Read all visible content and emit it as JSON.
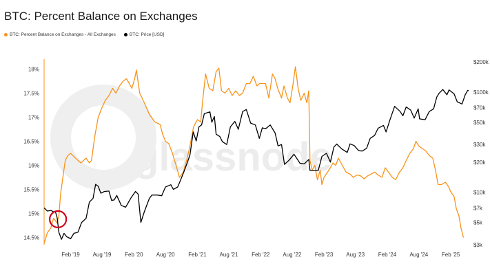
{
  "title": "BTC: Percent Balance on Exchanges",
  "watermark": "glassnode",
  "legend": [
    {
      "label": "BTC: Percent Balance on Exchanges - All Exchanges",
      "color": "#f7931a"
    },
    {
      "label": "BTC: Price [USD]",
      "color": "#000000"
    }
  ],
  "colors": {
    "balance": "#f7931a",
    "price": "#000000",
    "highlight": "#d0021b"
  },
  "chart_data": {
    "type": "line",
    "x_tick_labels": [
      "Feb '19",
      "Aug '19",
      "Feb '20",
      "Aug '20",
      "Feb '21",
      "Aug '21",
      "Feb '22",
      "Aug '22",
      "Feb '23",
      "Aug '23",
      "Feb '24",
      "Aug '24",
      "Feb '25"
    ],
    "x_range": [
      "2018-09-01",
      "2025-05-15"
    ],
    "y_left": {
      "label": "",
      "min": 14.35,
      "max": 18.15,
      "ticks": [
        14.5,
        15,
        15.5,
        16,
        16.5,
        17,
        17.5,
        18
      ],
      "tick_labels": [
        "14.5%",
        "15%",
        "15.5%",
        "16%",
        "16.5%",
        "17%",
        "17.5%",
        "18%"
      ]
    },
    "y_right": {
      "label": "",
      "scale": "log",
      "min": 3000,
      "max": 200000,
      "ticks": [
        3000,
        5000,
        7000,
        10000,
        20000,
        30000,
        50000,
        70000,
        100000,
        200000
      ],
      "tick_labels": [
        "$3k",
        "$5k",
        "$7k",
        "$10k",
        "$20k",
        "$30k",
        "$50k",
        "$70k",
        "$100k",
        "$200k"
      ]
    },
    "series": [
      {
        "name": "BTC: Percent Balance on Exchanges - All Exchanges",
        "axis": "left",
        "points": [
          [
            "2018-09-01",
            14.38
          ],
          [
            "2018-09-20",
            14.6
          ],
          [
            "2018-10-10",
            14.7
          ],
          [
            "2018-10-25",
            14.9
          ],
          [
            "2018-11-05",
            14.85
          ],
          [
            "2018-11-15",
            14.8
          ],
          [
            "2018-11-25",
            14.95
          ],
          [
            "2018-12-05",
            15.4
          ],
          [
            "2018-12-20",
            15.8
          ],
          [
            "2019-01-01",
            16.1
          ],
          [
            "2019-01-15",
            16.2
          ],
          [
            "2019-02-01",
            16.25
          ],
          [
            "2019-03-01",
            16.15
          ],
          [
            "2019-04-01",
            16.05
          ],
          [
            "2019-05-01",
            16.15
          ],
          [
            "2019-05-20",
            16.05
          ],
          [
            "2019-06-01",
            16.1
          ],
          [
            "2019-06-20",
            16.6
          ],
          [
            "2019-07-10",
            17.0
          ],
          [
            "2019-08-01",
            17.2
          ],
          [
            "2019-08-20",
            17.35
          ],
          [
            "2019-09-10",
            17.45
          ],
          [
            "2019-10-01",
            17.6
          ],
          [
            "2019-10-20",
            17.5
          ],
          [
            "2019-11-10",
            17.65
          ],
          [
            "2019-12-01",
            17.75
          ],
          [
            "2019-12-20",
            17.8
          ],
          [
            "2020-01-05",
            17.7
          ],
          [
            "2020-01-20",
            17.6
          ],
          [
            "2020-02-05",
            17.8
          ],
          [
            "2020-02-15",
            17.98
          ],
          [
            "2020-03-05",
            17.5
          ],
          [
            "2020-04-01",
            17.3
          ],
          [
            "2020-05-01",
            17.05
          ],
          [
            "2020-06-01",
            16.9
          ],
          [
            "2020-07-01",
            16.85
          ],
          [
            "2020-07-15",
            16.65
          ],
          [
            "2020-08-01",
            16.5
          ],
          [
            "2020-08-20",
            16.45
          ],
          [
            "2020-09-10",
            16.25
          ],
          [
            "2020-10-01",
            16.0
          ],
          [
            "2020-10-20",
            15.75
          ],
          [
            "2020-11-10",
            15.85
          ],
          [
            "2020-12-01",
            16.1
          ],
          [
            "2020-12-20",
            16.4
          ],
          [
            "2021-01-10",
            16.8
          ],
          [
            "2021-02-01",
            16.95
          ],
          [
            "2021-02-20",
            16.9
          ],
          [
            "2021-03-05",
            17.4
          ],
          [
            "2021-03-20",
            17.9
          ],
          [
            "2021-04-10",
            17.6
          ],
          [
            "2021-05-01",
            17.55
          ],
          [
            "2021-05-20",
            17.95
          ],
          [
            "2021-06-05",
            18.02
          ],
          [
            "2021-06-20",
            17.55
          ],
          [
            "2021-07-10",
            17.5
          ],
          [
            "2021-08-01",
            17.6
          ],
          [
            "2021-08-20",
            17.45
          ],
          [
            "2021-09-10",
            17.55
          ],
          [
            "2021-10-01",
            17.45
          ],
          [
            "2021-10-20",
            17.5
          ],
          [
            "2021-11-10",
            17.7
          ],
          [
            "2021-12-01",
            17.7
          ],
          [
            "2021-12-20",
            17.85
          ],
          [
            "2022-01-10",
            17.65
          ],
          [
            "2022-01-25",
            17.7
          ],
          [
            "2022-02-10",
            17.7
          ],
          [
            "2022-03-01",
            17.7
          ],
          [
            "2022-03-20",
            17.4
          ],
          [
            "2022-04-10",
            17.9
          ],
          [
            "2022-04-25",
            17.8
          ],
          [
            "2022-05-10",
            17.6
          ],
          [
            "2022-06-01",
            17.4
          ],
          [
            "2022-06-15",
            17.65
          ],
          [
            "2022-07-05",
            17.4
          ],
          [
            "2022-07-20",
            17.3
          ],
          [
            "2022-08-05",
            17.65
          ],
          [
            "2022-08-20",
            18.05
          ],
          [
            "2022-09-05",
            17.6
          ],
          [
            "2022-09-20",
            17.35
          ],
          [
            "2022-10-10",
            17.5
          ],
          [
            "2022-10-25",
            17.3
          ],
          [
            "2022-11-05",
            17.55
          ],
          [
            "2022-11-12",
            16.1
          ],
          [
            "2022-11-25",
            15.9
          ],
          [
            "2022-12-10",
            16.0
          ],
          [
            "2022-12-25",
            15.7
          ],
          [
            "2023-01-10",
            15.9
          ],
          [
            "2023-01-20",
            15.6
          ],
          [
            "2023-02-01",
            15.75
          ],
          [
            "2023-02-20",
            15.85
          ],
          [
            "2023-03-10",
            15.95
          ],
          [
            "2023-03-25",
            16.05
          ],
          [
            "2023-04-10",
            16.0
          ],
          [
            "2023-04-25",
            16.15
          ],
          [
            "2023-05-10",
            16.05
          ],
          [
            "2023-05-25",
            15.95
          ],
          [
            "2023-06-10",
            15.85
          ],
          [
            "2023-07-01",
            15.82
          ],
          [
            "2023-07-20",
            15.75
          ],
          [
            "2023-08-10",
            15.8
          ],
          [
            "2023-09-01",
            15.78
          ],
          [
            "2023-09-20",
            15.72
          ],
          [
            "2023-10-10",
            15.78
          ],
          [
            "2023-11-01",
            15.82
          ],
          [
            "2023-11-20",
            15.86
          ],
          [
            "2023-12-10",
            15.8
          ],
          [
            "2024-01-01",
            15.75
          ],
          [
            "2024-01-20",
            15.95
          ],
          [
            "2024-02-10",
            15.85
          ],
          [
            "2024-03-01",
            15.75
          ],
          [
            "2024-03-20",
            15.7
          ],
          [
            "2024-04-10",
            15.85
          ],
          [
            "2024-05-01",
            15.95
          ],
          [
            "2024-05-20",
            16.1
          ],
          [
            "2024-06-10",
            16.25
          ],
          [
            "2024-07-01",
            16.35
          ],
          [
            "2024-07-15",
            16.5
          ],
          [
            "2024-08-01",
            16.4
          ],
          [
            "2024-08-20",
            16.35
          ],
          [
            "2024-09-10",
            16.3
          ],
          [
            "2024-10-01",
            16.2
          ],
          [
            "2024-10-20",
            16.15
          ],
          [
            "2024-11-05",
            15.9
          ],
          [
            "2024-11-20",
            15.6
          ],
          [
            "2024-12-10",
            15.6
          ],
          [
            "2025-01-01",
            15.65
          ],
          [
            "2025-01-20",
            15.55
          ],
          [
            "2025-02-01",
            15.45
          ],
          [
            "2025-02-20",
            15.35
          ],
          [
            "2025-03-05",
            15.1
          ],
          [
            "2025-03-20",
            14.95
          ],
          [
            "2025-04-01",
            14.7
          ],
          [
            "2025-04-15",
            14.5
          ]
        ]
      },
      {
        "name": "BTC: Price [USD]",
        "axis": "right",
        "points": [
          [
            "2018-09-01",
            7000
          ],
          [
            "2018-09-20",
            6500
          ],
          [
            "2018-10-10",
            6600
          ],
          [
            "2018-10-25",
            6400
          ],
          [
            "2018-11-05",
            6400
          ],
          [
            "2018-11-15",
            5600
          ],
          [
            "2018-11-25",
            4000
          ],
          [
            "2018-12-10",
            3400
          ],
          [
            "2018-12-25",
            3900
          ],
          [
            "2019-01-10",
            3600
          ],
          [
            "2019-02-01",
            3450
          ],
          [
            "2019-02-20",
            3900
          ],
          [
            "2019-03-15",
            4000
          ],
          [
            "2019-04-05",
            5000
          ],
          [
            "2019-05-01",
            5500
          ],
          [
            "2019-05-20",
            8000
          ],
          [
            "2019-06-10",
            8700
          ],
          [
            "2019-06-25",
            12000
          ],
          [
            "2019-07-10",
            11500
          ],
          [
            "2019-07-25",
            9800
          ],
          [
            "2019-08-15",
            10200
          ],
          [
            "2019-09-10",
            10300
          ],
          [
            "2019-09-25",
            8300
          ],
          [
            "2019-10-10",
            8400
          ],
          [
            "2019-10-25",
            9300
          ],
          [
            "2019-11-20",
            7400
          ],
          [
            "2019-12-15",
            7100
          ],
          [
            "2020-01-15",
            8800
          ],
          [
            "2020-02-10",
            10200
          ],
          [
            "2020-02-25",
            9600
          ],
          [
            "2020-03-12",
            5000
          ],
          [
            "2020-04-01",
            6400
          ],
          [
            "2020-04-30",
            8700
          ],
          [
            "2020-05-15",
            9400
          ],
          [
            "2020-06-15",
            9400
          ],
          [
            "2020-07-10",
            9250
          ],
          [
            "2020-08-01",
            11300
          ],
          [
            "2020-09-01",
            11900
          ],
          [
            "2020-09-15",
            10700
          ],
          [
            "2020-10-10",
            11300
          ],
          [
            "2020-10-25",
            13000
          ],
          [
            "2020-11-15",
            16000
          ],
          [
            "2020-12-01",
            19000
          ],
          [
            "2020-12-20",
            23500
          ],
          [
            "2021-01-08",
            40000
          ],
          [
            "2021-01-25",
            32500
          ],
          [
            "2021-02-10",
            45000
          ],
          [
            "2021-02-25",
            47000
          ],
          [
            "2021-03-13",
            61000
          ],
          [
            "2021-04-14",
            63500
          ],
          [
            "2021-04-25",
            50000
          ],
          [
            "2021-05-10",
            57000
          ],
          [
            "2021-05-20",
            38000
          ],
          [
            "2021-06-10",
            36000
          ],
          [
            "2021-06-25",
            32000
          ],
          [
            "2021-07-20",
            30000
          ],
          [
            "2021-08-10",
            45000
          ],
          [
            "2021-09-05",
            51000
          ],
          [
            "2021-09-25",
            42500
          ],
          [
            "2021-10-20",
            64000
          ],
          [
            "2021-11-10",
            67000
          ],
          [
            "2021-12-05",
            49000
          ],
          [
            "2022-01-01",
            47000
          ],
          [
            "2022-01-24",
            34500
          ],
          [
            "2022-02-10",
            44000
          ],
          [
            "2022-03-01",
            43000
          ],
          [
            "2022-03-28",
            47000
          ],
          [
            "2022-04-25",
            39000
          ],
          [
            "2022-05-12",
            29000
          ],
          [
            "2022-06-01",
            30000
          ],
          [
            "2022-06-18",
            19000
          ],
          [
            "2022-07-15",
            21000
          ],
          [
            "2022-08-12",
            24000
          ],
          [
            "2022-09-15",
            19500
          ],
          [
            "2022-10-10",
            19200
          ],
          [
            "2022-11-05",
            21300
          ],
          [
            "2022-11-12",
            16500
          ],
          [
            "2022-12-30",
            16500
          ],
          [
            "2023-01-20",
            22800
          ],
          [
            "2023-02-15",
            24500
          ],
          [
            "2023-03-10",
            20000
          ],
          [
            "2023-03-30",
            28300
          ],
          [
            "2023-04-15",
            30300
          ],
          [
            "2023-05-15",
            27000
          ],
          [
            "2023-06-15",
            25000
          ],
          [
            "2023-07-01",
            30400
          ],
          [
            "2023-07-25",
            29300
          ],
          [
            "2023-08-20",
            26000
          ],
          [
            "2023-09-10",
            25800
          ],
          [
            "2023-10-05",
            27500
          ],
          [
            "2023-10-25",
            34500
          ],
          [
            "2023-11-20",
            37000
          ],
          [
            "2023-12-10",
            43500
          ],
          [
            "2024-01-10",
            46500
          ],
          [
            "2024-01-25",
            40000
          ],
          [
            "2024-02-15",
            52000
          ],
          [
            "2024-03-14",
            72000
          ],
          [
            "2024-04-15",
            64000
          ],
          [
            "2024-05-01",
            58000
          ],
          [
            "2024-05-20",
            71000
          ],
          [
            "2024-06-15",
            66000
          ],
          [
            "2024-07-05",
            55000
          ],
          [
            "2024-07-28",
            68000
          ],
          [
            "2024-08-05",
            54000
          ],
          [
            "2024-09-06",
            53000
          ],
          [
            "2024-09-30",
            64000
          ],
          [
            "2024-10-25",
            68000
          ],
          [
            "2024-11-12",
            89000
          ],
          [
            "2024-11-25",
            97000
          ],
          [
            "2024-12-17",
            106000
          ],
          [
            "2025-01-10",
            94000
          ],
          [
            "2025-01-22",
            105000
          ],
          [
            "2025-02-20",
            96000
          ],
          [
            "2025-03-10",
            80000
          ],
          [
            "2025-04-07",
            76000
          ],
          [
            "2025-04-25",
            94000
          ],
          [
            "2025-05-10",
            104000
          ],
          [
            "2025-05-15",
            103000
          ]
        ]
      }
    ],
    "annotations": [
      {
        "type": "circle",
        "at": [
          "2018-11-20",
          14.88
        ],
        "color": "#d0021b"
      }
    ]
  }
}
